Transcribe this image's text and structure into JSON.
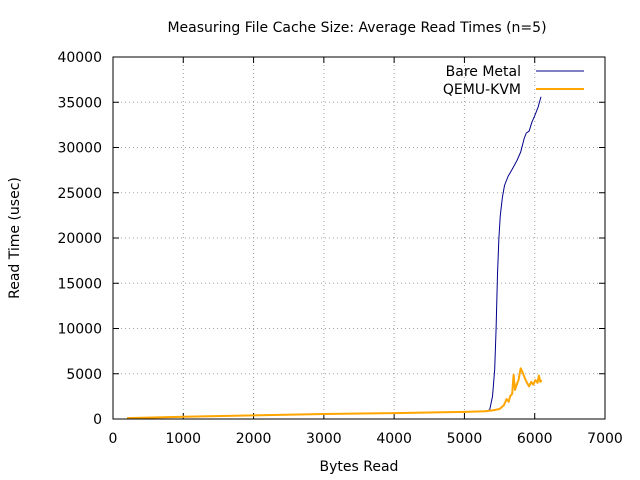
{
  "chart_data": {
    "type": "line",
    "title": "Measuring File Cache Size: Average Read Times (n=5)",
    "xlabel": "Bytes Read",
    "ylabel": "Read Time (usec)",
    "xlim": [
      0,
      7000
    ],
    "ylim": [
      0,
      40000
    ],
    "x_ticks": [
      "0",
      "1000",
      "2000",
      "3000",
      "4000",
      "5000",
      "6000",
      "7000"
    ],
    "y_ticks": [
      "0",
      "5000",
      "10000",
      "15000",
      "20000",
      "25000",
      "30000",
      "35000",
      "40000"
    ],
    "grid": true,
    "legend_position": "top-right",
    "series": [
      {
        "name": "Bare Metal",
        "color": "#00008b",
        "points": [
          [
            200,
            100
          ],
          [
            1000,
            250
          ],
          [
            2000,
            400
          ],
          [
            3000,
            550
          ],
          [
            4000,
            650
          ],
          [
            5000,
            780
          ],
          [
            5300,
            850
          ],
          [
            5360,
            1000
          ],
          [
            5400,
            2500
          ],
          [
            5430,
            5500
          ],
          [
            5450,
            10000
          ],
          [
            5470,
            16000
          ],
          [
            5490,
            20000
          ],
          [
            5510,
            22500
          ],
          [
            5540,
            24500
          ],
          [
            5570,
            25800
          ],
          [
            5620,
            26800
          ],
          [
            5680,
            27600
          ],
          [
            5750,
            28600
          ],
          [
            5800,
            29500
          ],
          [
            5850,
            31000
          ],
          [
            5880,
            31600
          ],
          [
            5920,
            31800
          ],
          [
            5960,
            32800
          ],
          [
            6000,
            33500
          ],
          [
            6050,
            34500
          ],
          [
            6090,
            35600
          ]
        ]
      },
      {
        "name": "QEMU-KVM",
        "color": "#ffa500",
        "points": [
          [
            200,
            100
          ],
          [
            1000,
            250
          ],
          [
            2000,
            400
          ],
          [
            3000,
            550
          ],
          [
            4000,
            650
          ],
          [
            5000,
            780
          ],
          [
            5300,
            850
          ],
          [
            5400,
            950
          ],
          [
            5500,
            1100
          ],
          [
            5560,
            1500
          ],
          [
            5600,
            2200
          ],
          [
            5630,
            1900
          ],
          [
            5650,
            2500
          ],
          [
            5680,
            2800
          ],
          [
            5700,
            4900
          ],
          [
            5720,
            3200
          ],
          [
            5740,
            3700
          ],
          [
            5770,
            4300
          ],
          [
            5800,
            5600
          ],
          [
            5830,
            5100
          ],
          [
            5860,
            4500
          ],
          [
            5890,
            4000
          ],
          [
            5920,
            3600
          ],
          [
            5950,
            4100
          ],
          [
            5980,
            3800
          ],
          [
            6010,
            4300
          ],
          [
            6040,
            4000
          ],
          [
            6060,
            4800
          ],
          [
            6080,
            4100
          ],
          [
            6100,
            4300
          ]
        ]
      }
    ]
  }
}
